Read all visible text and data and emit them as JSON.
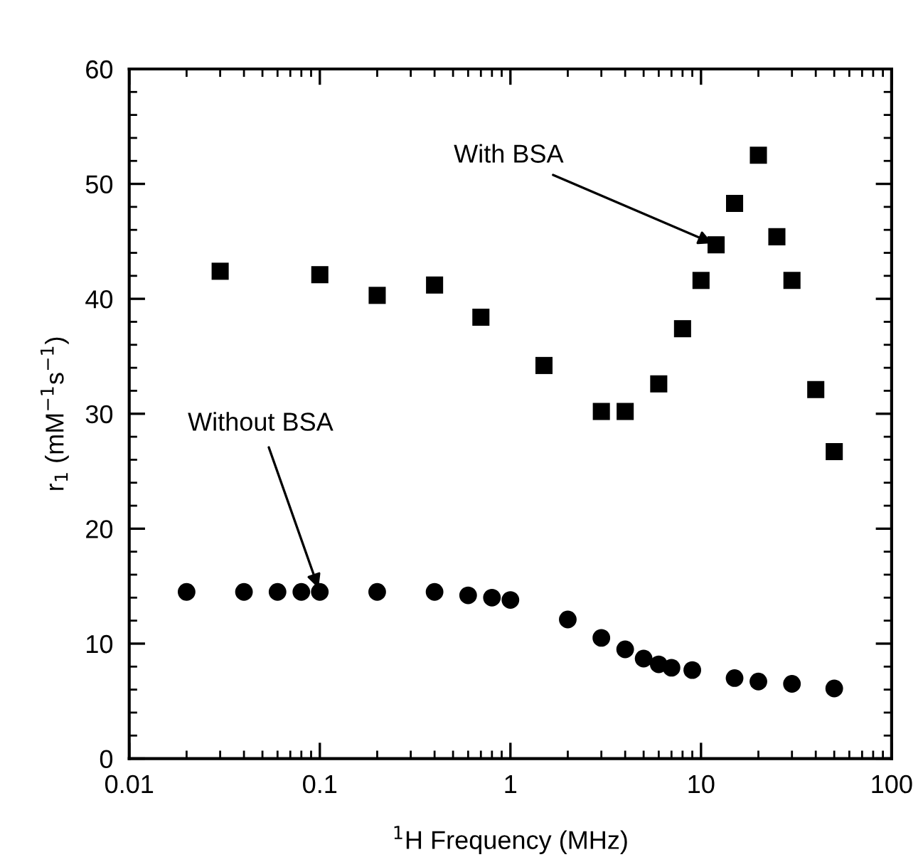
{
  "chart_data": {
    "type": "scatter",
    "xlabel": "$^{1}$H Frequency (MHz)",
    "ylabel": "r$_{1}$ (mM$^{−1}$s$^{−1}$)",
    "log": "x",
    "xlim": [
      0.01,
      100
    ],
    "xticks": [
      0.01,
      0.1,
      1,
      10,
      100
    ],
    "ylim": [
      0,
      60
    ],
    "yticks": [
      0,
      10,
      20,
      30,
      40,
      50,
      60
    ],
    "grid": false,
    "legend": false,
    "series": [
      {
        "color": "#000000",
        "marker": "square",
        "x": [
          0.03,
          0.1,
          0.2,
          0.4,
          0.7,
          1.5,
          3,
          4,
          6,
          8,
          10,
          12,
          15,
          20,
          25,
          30,
          40,
          50
        ],
        "values": [
          42.4,
          42.1,
          40.3,
          41.2,
          38.4,
          34.2,
          30.2,
          30.2,
          32.6,
          37.4,
          41.6,
          44.7,
          48.3,
          52.5,
          45.4,
          41.6,
          32.1,
          26.7
        ]
      },
      {
        "color": "#000000",
        "marker": "circle",
        "x": [
          0.02,
          0.04,
          0.06,
          0.08,
          0.1,
          0.2,
          0.4,
          0.6,
          0.8,
          1,
          2,
          3,
          4,
          5,
          6,
          7,
          9,
          15,
          20,
          30,
          50
        ],
        "values": [
          14.5,
          14.5,
          14.5,
          14.5,
          14.5,
          14.5,
          14.5,
          14.2,
          14.0,
          13.8,
          12.1,
          10.5,
          9.5,
          8.7,
          8.2,
          7.9,
          7.7,
          7.0,
          6.7,
          6.5,
          6.1
        ]
      }
    ],
    "annotations": [
      {
        "text": "With BSA",
        "x": 12,
        "y": 44.7
      },
      {
        "text": "Without BSA",
        "x": 0.1,
        "y": 14.5
      }
    ]
  }
}
